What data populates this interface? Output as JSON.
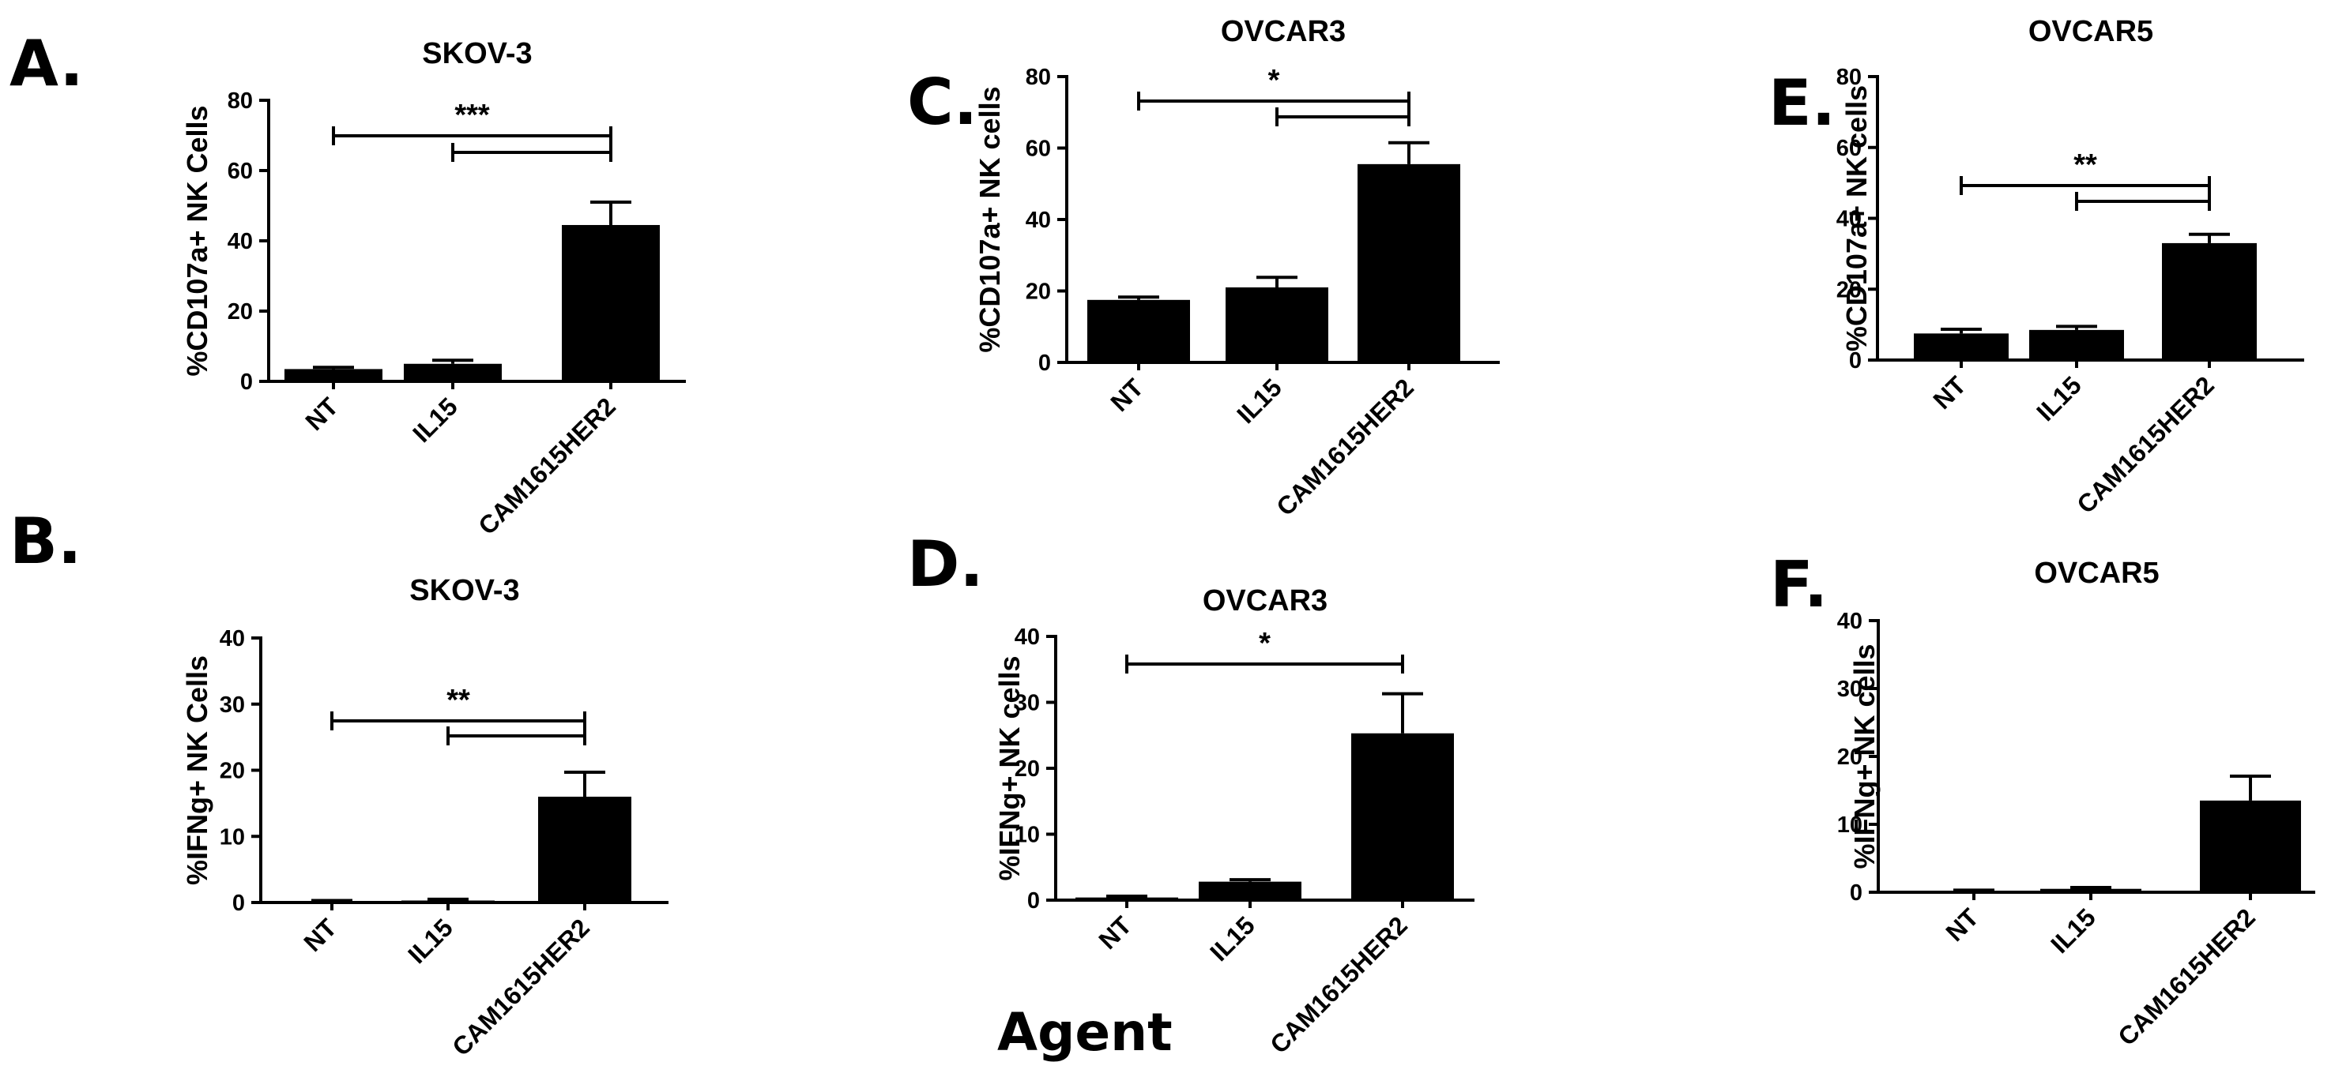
{
  "figure": {
    "shared_xlabel": "Agent"
  },
  "chart_data": [
    {
      "panel": "A.",
      "type": "bar",
      "title": "SKOV-3",
      "ylabel": "%CD107a+ NK Cells",
      "xlabel": "",
      "categories": [
        "NT",
        "IL15",
        "CAM1615HER2"
      ],
      "values": [
        3.5,
        5,
        44.5
      ],
      "errors": [
        0.5,
        1,
        6.5
      ],
      "ylim": [
        0,
        80
      ],
      "yticks": [
        0,
        20,
        40,
        60,
        80
      ],
      "significance": [
        {
          "from": "NT",
          "to": "CAM1615HER2",
          "label": "***"
        },
        {
          "from": "IL15",
          "to": "CAM1615HER2",
          "label": ""
        }
      ]
    },
    {
      "panel": "B.",
      "type": "bar",
      "title": "SKOV-3",
      "ylabel": "%IFNg+ NK Cells",
      "xlabel": "",
      "categories": [
        "NT",
        "IL15",
        "CAM1615HER2"
      ],
      "values": [
        0.2,
        0.3,
        16
      ],
      "errors": [
        0.1,
        0.2,
        3.7
      ],
      "ylim": [
        0,
        40
      ],
      "yticks": [
        0,
        10,
        20,
        30,
        40
      ],
      "significance": [
        {
          "from": "NT",
          "to": "CAM1615HER2",
          "label": "**"
        },
        {
          "from": "IL15",
          "to": "CAM1615HER2",
          "label": ""
        }
      ]
    },
    {
      "panel": "C.",
      "type": "bar",
      "title": "OVCAR3",
      "ylabel": "%CD107a+ NK cells",
      "xlabel": "",
      "categories": [
        "NT",
        "IL15",
        "CAM1615HER2"
      ],
      "values": [
        17.5,
        21,
        55.5
      ],
      "errors": [
        0.8,
        2.8,
        6
      ],
      "ylim": [
        0,
        80
      ],
      "yticks": [
        0,
        20,
        40,
        60,
        80
      ],
      "significance": [
        {
          "from": "NT",
          "to": "CAM1615HER2",
          "label": "*"
        },
        {
          "from": "IL15",
          "to": "CAM1615HER2",
          "label": ""
        }
      ]
    },
    {
      "panel": "D.",
      "type": "bar",
      "title": "OVCAR3",
      "ylabel": "%IFNg+ NK cells",
      "xlabel": "",
      "categories": [
        "NT",
        "IL15",
        "CAM1615HER2"
      ],
      "values": [
        0.4,
        2.8,
        25.3
      ],
      "errors": [
        0.2,
        0.3,
        6
      ],
      "ylim": [
        0,
        40
      ],
      "yticks": [
        0,
        10,
        20,
        30,
        40
      ],
      "significance": [
        {
          "from": "NT",
          "to": "CAM1615HER2",
          "label": "*"
        }
      ]
    },
    {
      "panel": "E.",
      "type": "bar",
      "title": "OVCAR5",
      "ylabel": "%CD107a+ NK cells",
      "xlabel": "",
      "categories": [
        "NT",
        "IL15",
        "CAM1615HER2"
      ],
      "values": [
        7.5,
        8.5,
        33
      ],
      "errors": [
        1.2,
        1,
        2.5
      ],
      "ylim": [
        0,
        80
      ],
      "yticks": [
        0,
        20,
        40,
        60,
        80
      ],
      "significance": [
        {
          "from": "NT",
          "to": "CAM1615HER2",
          "label": "**"
        },
        {
          "from": "IL15",
          "to": "CAM1615HER2",
          "label": ""
        }
      ]
    },
    {
      "panel": "F.",
      "type": "bar",
      "title": "OVCAR5",
      "ylabel": "%IFNg+ NK cells",
      "xlabel": "",
      "categories": [
        "NT",
        "IL15",
        "CAM1615HER2"
      ],
      "values": [
        0.2,
        0.5,
        13.5
      ],
      "errors": [
        0.1,
        0.2,
        3.6
      ],
      "ylim": [
        0,
        40
      ],
      "yticks": [
        0,
        10,
        20,
        30,
        40
      ],
      "significance": []
    }
  ]
}
